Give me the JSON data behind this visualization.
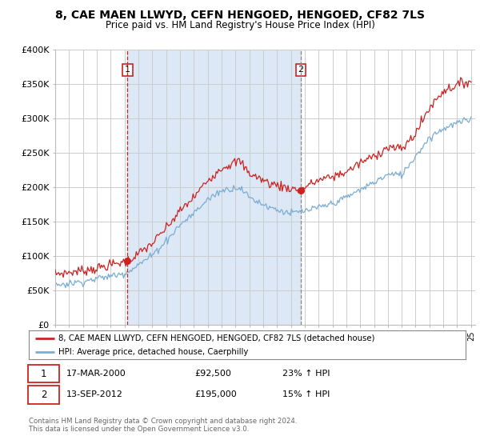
{
  "title": "8, CAE MAEN LLWYD, CEFN HENGOED, HENGOED, CF82 7LS",
  "subtitle": "Price paid vs. HM Land Registry's House Price Index (HPI)",
  "bg_color": "#ffffff",
  "plot_bg_color": "#ffffff",
  "grid_color": "#cccccc",
  "shade_color": "#dce8f5",
  "red_color": "#cc2222",
  "blue_color": "#7aadd4",
  "sale1_x": 2000.21,
  "sale1_price": 92500,
  "sale2_x": 2012.71,
  "sale2_price": 195000,
  "sale1_date_str": "17-MAR-2000",
  "sale1_pct": "23%",
  "sale2_date_str": "13-SEP-2012",
  "sale2_pct": "15%",
  "ylim": [
    0,
    400000
  ],
  "yticks": [
    0,
    50000,
    100000,
    150000,
    200000,
    250000,
    300000,
    350000,
    400000
  ],
  "ytick_labels": [
    "£0",
    "£50K",
    "£100K",
    "£150K",
    "£200K",
    "£250K",
    "£300K",
    "£350K",
    "£400K"
  ],
  "legend_line1": "8, CAE MAEN LLWYD, CEFN HENGOED, HENGOED, CF82 7LS (detached house)",
  "legend_line2": "HPI: Average price, detached house, Caerphilly",
  "footnote": "Contains HM Land Registry data © Crown copyright and database right 2024.\nThis data is licensed under the Open Government Licence v3.0."
}
